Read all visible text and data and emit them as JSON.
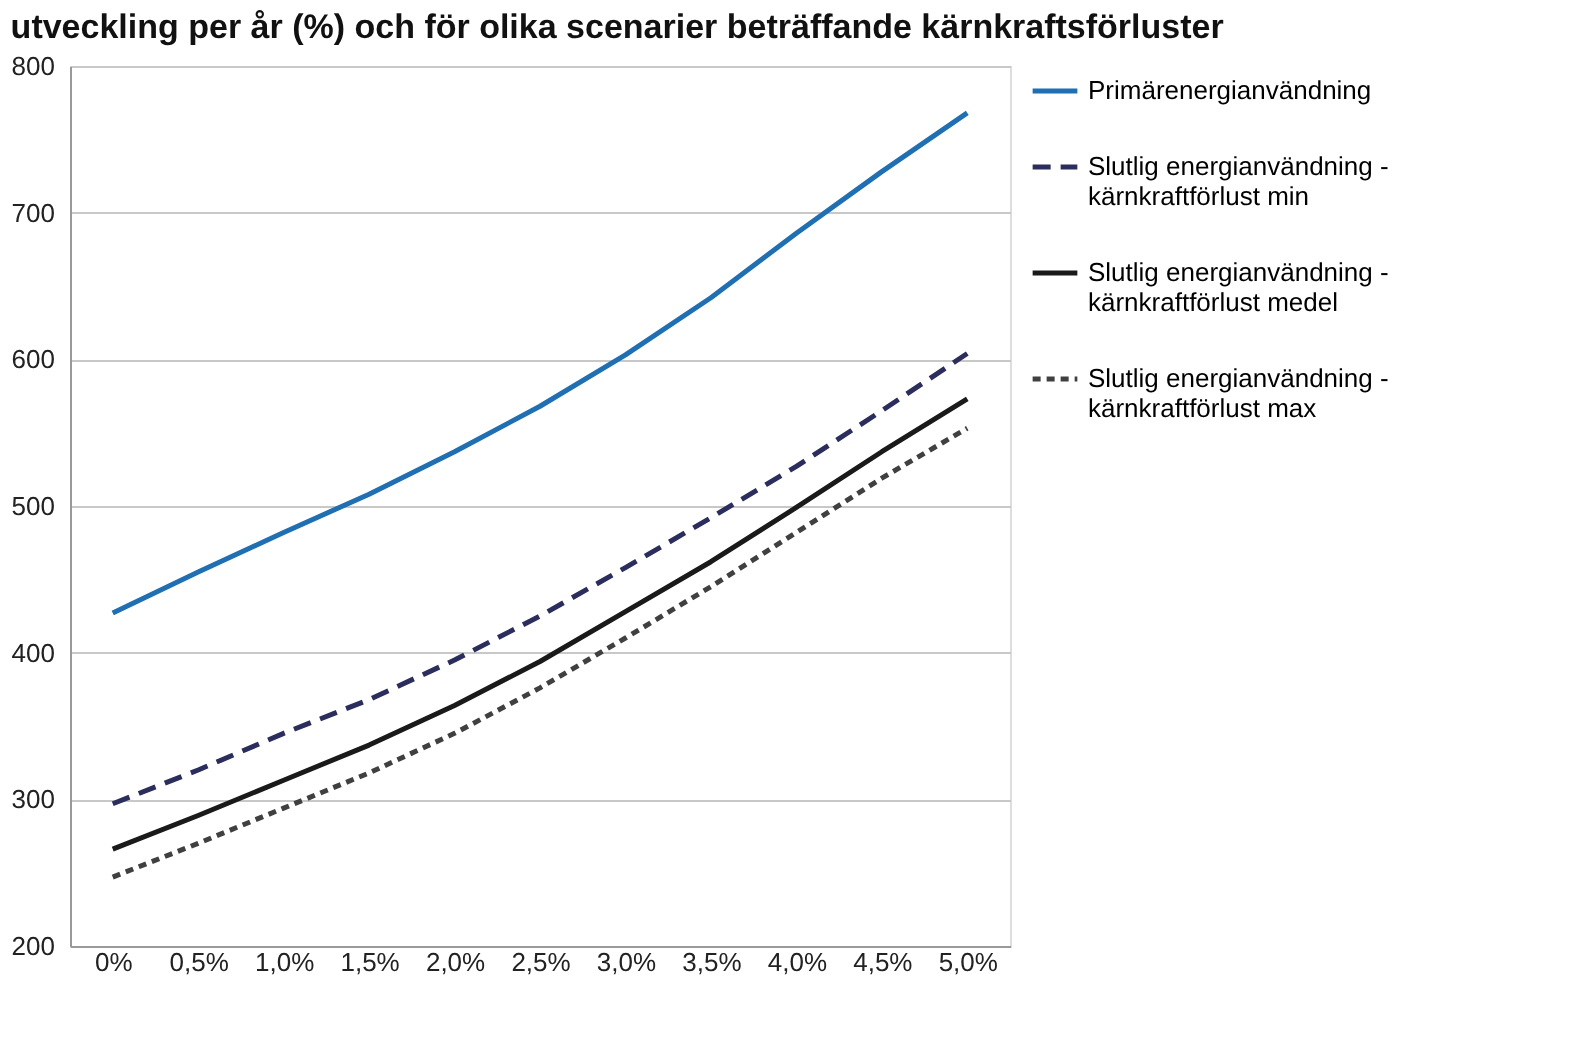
{
  "chart_data": {
    "type": "line",
    "title": "utveckling per år (%) och för olika scenarier beträffande kärnkraftsförluster",
    "categories": [
      "0%",
      "0,5%",
      "1,0%",
      "1,5%",
      "2,0%",
      "2,5%",
      "3,0%",
      "3,5%",
      "4,0%",
      "4,5%",
      "5,0%"
    ],
    "series": [
      {
        "name": "Primärenergianvändning",
        "color": "#1f6fb2",
        "line_style": "solid",
        "values": [
          427,
          455,
          482,
          508,
          537,
          568,
          603,
          642,
          686,
          728,
          768
        ]
      },
      {
        "name": "Slutlig energianvändning -\nkärnkraftförlust min",
        "color": "#2b2d5c",
        "line_style": "dashed",
        "values": [
          297,
          320,
          345,
          368,
          395,
          425,
          458,
          492,
          527,
          565,
          604
        ]
      },
      {
        "name": "Slutlig energianvändning -\nkärnkraftförlust medel",
        "color": "#1a1a1a",
        "line_style": "solid",
        "values": [
          266,
          289,
          313,
          337,
          364,
          394,
          428,
          462,
          499,
          537,
          573
        ]
      },
      {
        "name": "Slutlig energianvändning -\nkärnkraftförlust max",
        "color": "#404040",
        "line_style": "dotted",
        "values": [
          247,
          270,
          294,
          318,
          345,
          376,
          410,
          445,
          482,
          519,
          553
        ]
      }
    ],
    "ylim": [
      200,
      800
    ],
    "yticks": [
      200,
      300,
      400,
      500,
      600,
      700,
      800
    ],
    "grid": "y",
    "legend": "right",
    "marker": "none"
  }
}
